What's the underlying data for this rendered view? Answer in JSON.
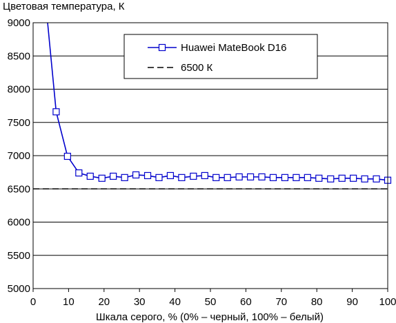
{
  "chart_data": {
    "type": "line",
    "ylabel": "Цветовая температура, К",
    "xlabel": "Шкала серого, % (0% – черный, 100% – белый)",
    "xlim": [
      0,
      100
    ],
    "ylim": [
      5000,
      9000
    ],
    "xticks": [
      0,
      10,
      20,
      30,
      40,
      50,
      60,
      70,
      80,
      90,
      100
    ],
    "yticks": [
      5000,
      5500,
      6000,
      6500,
      7000,
      7500,
      8000,
      8500,
      9000
    ],
    "grid": "horizontal",
    "legend_position": "top-right",
    "series": [
      {
        "name": "Huawei MateBook D16",
        "color": "#0000cc",
        "marker": "square",
        "line_start": [
          4,
          9050
        ],
        "x": [
          6.5,
          9.7,
          12.9,
          16.1,
          19.4,
          22.6,
          25.8,
          29,
          32.3,
          35.5,
          38.7,
          41.9,
          45.2,
          48.4,
          51.6,
          54.8,
          58.1,
          61.3,
          64.5,
          67.7,
          71,
          74.2,
          77.4,
          80.6,
          83.9,
          87.1,
          90.3,
          93.5,
          96.8,
          100
        ],
        "y": [
          7660,
          6990,
          6740,
          6690,
          6660,
          6690,
          6670,
          6710,
          6700,
          6670,
          6700,
          6670,
          6690,
          6700,
          6670,
          6670,
          6680,
          6680,
          6680,
          6670,
          6670,
          6670,
          6670,
          6660,
          6650,
          6660,
          6660,
          6650,
          6650,
          6630
        ]
      },
      {
        "name": "6500 К",
        "color": "#000000",
        "style": "dashed",
        "x": [
          0,
          100
        ],
        "y": [
          6500,
          6500
        ]
      }
    ]
  }
}
